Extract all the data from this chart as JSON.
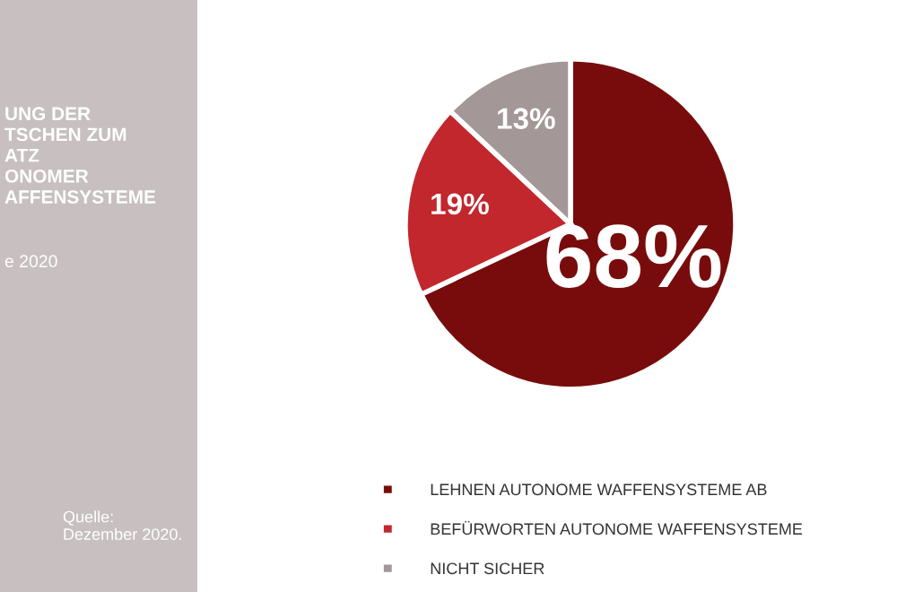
{
  "chart_data": {
    "type": "pie",
    "title": "UNG DER\nTSCHEN ZUM\nATZ\nONOMER\nAFFENSYSTEME",
    "subtitle": "e 2020",
    "categories": [
      "LEHNEN AUTONOME WAFFENSYSTEME AB",
      "BEFÜRWORTEN AUTONOME WAFFENSYSTEME",
      "NICHT SICHER"
    ],
    "values": [
      68,
      19,
      13
    ],
    "colors": [
      "#780c0c",
      "#c1272d",
      "#a39797"
    ],
    "value_labels": [
      "68%",
      "19%",
      "13%"
    ],
    "legend": "bottom",
    "annotations": [
      "Quelle:\nDezember 2020."
    ]
  }
}
